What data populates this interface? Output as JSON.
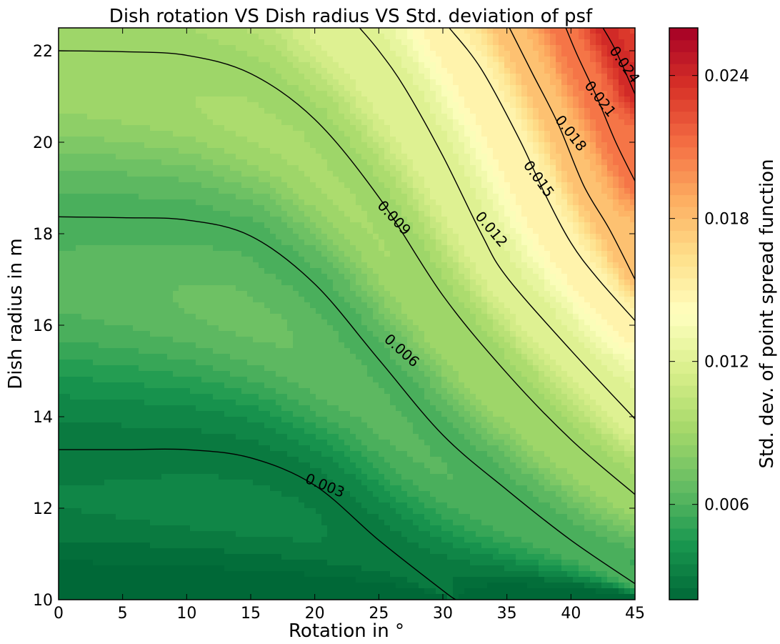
{
  "chart_data": {
    "type": "contour",
    "title": "Dish rotation VS Dish radius VS Std. deviation of psf",
    "xlabel": "Rotation in °",
    "ylabel": "Dish radius in m",
    "xlim": [
      0,
      45
    ],
    "ylim": [
      10,
      22.5
    ],
    "x_ticks": [
      0,
      5,
      10,
      15,
      20,
      25,
      30,
      35,
      40,
      45
    ],
    "x_tick_labels": [
      "0",
      "5",
      "10",
      "15",
      "20",
      "25",
      "30",
      "35",
      "40",
      "45"
    ],
    "y_ticks": [
      10,
      12,
      14,
      16,
      18,
      20,
      22
    ],
    "y_tick_labels": [
      "10",
      "12",
      "14",
      "16",
      "18",
      "20",
      "22"
    ],
    "colormap": "RdYlGn_r",
    "colorbar": {
      "label": "Std. dev. of point spread function",
      "range": [
        0.002,
        0.026
      ],
      "ticks": [
        0.006,
        0.012,
        0.018,
        0.024
      ],
      "tick_labels": [
        "0.006",
        "0.012",
        "0.018",
        "0.024"
      ]
    },
    "contours": [
      {
        "level": 0.003,
        "label": "0.003",
        "points": [
          [
            0,
            13.28
          ],
          [
            5,
            13.28
          ],
          [
            10,
            13.28
          ],
          [
            15,
            13.1
          ],
          [
            20,
            12.5
          ],
          [
            25,
            11.3
          ],
          [
            30,
            10.2
          ],
          [
            31,
            10.0
          ]
        ]
      },
      {
        "level": 0.006,
        "label": "0.006",
        "points": [
          [
            0,
            18.37
          ],
          [
            5,
            18.35
          ],
          [
            10,
            18.3
          ],
          [
            15,
            17.95
          ],
          [
            20,
            16.9
          ],
          [
            25,
            15.25
          ],
          [
            30,
            13.6
          ],
          [
            35,
            12.4
          ],
          [
            40,
            11.3
          ],
          [
            45,
            10.35
          ]
        ]
      },
      {
        "level": 0.009,
        "label": "0.009",
        "points": [
          [
            0,
            22.0
          ],
          [
            5,
            21.98
          ],
          [
            10,
            21.9
          ],
          [
            15,
            21.5
          ],
          [
            20,
            20.5
          ],
          [
            25,
            18.8
          ],
          [
            30,
            16.65
          ],
          [
            35,
            14.95
          ],
          [
            40,
            13.5
          ],
          [
            45,
            12.3
          ]
        ]
      },
      {
        "level": 0.012,
        "label": "0.012",
        "points": [
          [
            23.5,
            22.5
          ],
          [
            25,
            22.0
          ],
          [
            27,
            21.2
          ],
          [
            30,
            19.7
          ],
          [
            33,
            18.0
          ],
          [
            35,
            17.05
          ],
          [
            40,
            15.45
          ],
          [
            45,
            13.95
          ]
        ]
      },
      {
        "level": 0.015,
        "label": "0.015",
        "points": [
          [
            30.5,
            22.5
          ],
          [
            33,
            21.6
          ],
          [
            36,
            20.05
          ],
          [
            38,
            18.85
          ],
          [
            40,
            17.8
          ],
          [
            42,
            17.05
          ],
          [
            45,
            16.1
          ]
        ]
      },
      {
        "level": 0.018,
        "label": "0.018",
        "points": [
          [
            35.2,
            22.5
          ],
          [
            37,
            21.5
          ],
          [
            39,
            20.4
          ],
          [
            41,
            19.05
          ],
          [
            43,
            18.1
          ],
          [
            45,
            17.0
          ]
        ]
      },
      {
        "level": 0.021,
        "label": "0.021",
        "points": [
          [
            39.6,
            22.5
          ],
          [
            40.5,
            21.9
          ],
          [
            42,
            21.0
          ],
          [
            43.5,
            20.0
          ],
          [
            45,
            19.15
          ]
        ]
      },
      {
        "level": 0.024,
        "label": "0.024",
        "points": [
          [
            42.5,
            22.5
          ],
          [
            43.5,
            22.0
          ],
          [
            45,
            21.05
          ]
        ]
      }
    ]
  }
}
